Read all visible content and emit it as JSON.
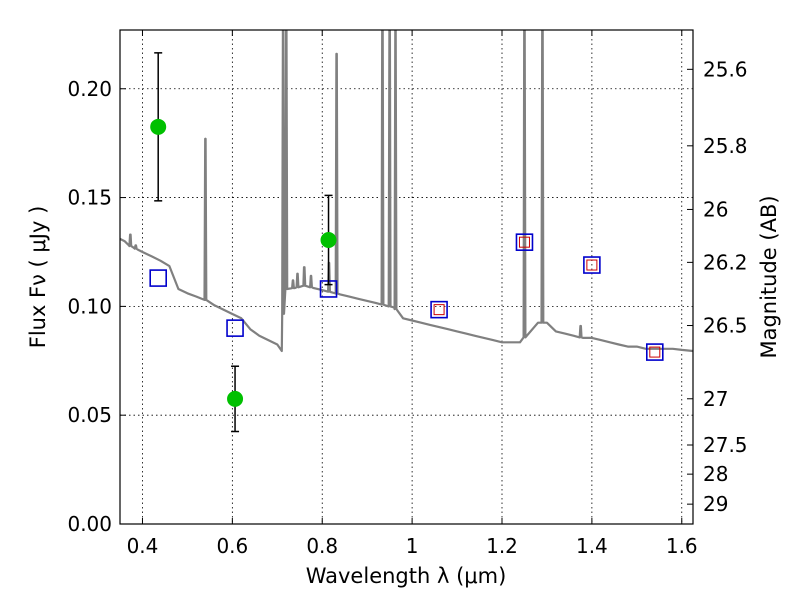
{
  "chart_data": {
    "type": "scatter",
    "xlabel": "Wavelength  λ (μm)",
    "ylabel": "Flux  Fν  ( μJy )",
    "y2label": "Magnitude (AB)",
    "xlim": [
      0.35,
      1.625
    ],
    "ylim": [
      0.0,
      0.227
    ],
    "grid": true,
    "x_ticks": [
      {
        "value": 0.4,
        "label": "0.4"
      },
      {
        "value": 0.6,
        "label": "0.6"
      },
      {
        "value": 0.8,
        "label": "0.8"
      },
      {
        "value": 1.0,
        "label": "1"
      },
      {
        "value": 1.2,
        "label": "1.2"
      },
      {
        "value": 1.4,
        "label": "1.4"
      },
      {
        "value": 1.6,
        "label": "1.6"
      }
    ],
    "y_ticks": [
      {
        "value": 0.0,
        "label": "0.00"
      },
      {
        "value": 0.05,
        "label": "0.05"
      },
      {
        "value": 0.1,
        "label": "0.10"
      },
      {
        "value": 0.15,
        "label": "0.15"
      },
      {
        "value": 0.2,
        "label": "0.20"
      }
    ],
    "y2_ticks": [
      {
        "mag": 25.6,
        "label": "25.6"
      },
      {
        "mag": 25.8,
        "label": "25.8"
      },
      {
        "mag": 26.0,
        "label": "26"
      },
      {
        "mag": 26.2,
        "label": "26.2"
      },
      {
        "mag": 26.5,
        "label": "26.5"
      },
      {
        "mag": 27.0,
        "label": "27"
      },
      {
        "mag": 27.5,
        "label": "27.5"
      },
      {
        "mag": 28.0,
        "label": "28"
      },
      {
        "mag": 29.0,
        "label": "29"
      }
    ],
    "colors": {
      "observed": "#00c000",
      "errorbar": "#000000",
      "model_box": "#0000cc",
      "model_inner": "#cc0000",
      "sed": "#808080",
      "grid": "#000000"
    },
    "observed": [
      {
        "x": 0.435,
        "y": 0.1825,
        "err": 0.034
      },
      {
        "x": 0.606,
        "y": 0.0575,
        "err": 0.015
      },
      {
        "x": 0.814,
        "y": 0.1305,
        "err": 0.0205
      }
    ],
    "model_photometry": [
      {
        "x": 0.435,
        "y": 0.113
      },
      {
        "x": 0.606,
        "y": 0.09
      },
      {
        "x": 0.814,
        "y": 0.108
      },
      {
        "x": 1.06,
        "y": 0.0985
      },
      {
        "x": 1.25,
        "y": 0.1295
      },
      {
        "x": 1.4,
        "y": 0.119
      },
      {
        "x": 1.54,
        "y": 0.079
      }
    ],
    "model_photometry_inner": [
      {
        "x": 1.06,
        "y": 0.0985
      },
      {
        "x": 1.25,
        "y": 0.1295
      },
      {
        "x": 1.4,
        "y": 0.119
      },
      {
        "x": 1.54,
        "y": 0.079
      }
    ],
    "sed_continuum": [
      [
        0.35,
        0.131
      ],
      [
        0.36,
        0.13
      ],
      [
        0.37,
        0.128
      ],
      [
        0.38,
        0.127
      ],
      [
        0.39,
        0.126
      ],
      [
        0.4,
        0.125
      ],
      [
        0.42,
        0.123
      ],
      [
        0.44,
        0.121
      ],
      [
        0.46,
        0.1185
      ],
      [
        0.48,
        0.108
      ],
      [
        0.5,
        0.106
      ],
      [
        0.52,
        0.1045
      ],
      [
        0.54,
        0.103
      ],
      [
        0.56,
        0.1005
      ],
      [
        0.58,
        0.0985
      ],
      [
        0.6,
        0.0965
      ],
      [
        0.62,
        0.0945
      ],
      [
        0.64,
        0.0895
      ],
      [
        0.66,
        0.0865
      ],
      [
        0.68,
        0.0845
      ],
      [
        0.7,
        0.0825
      ],
      [
        0.71,
        0.0795
      ],
      [
        0.715,
        0.108
      ],
      [
        0.72,
        0.108
      ],
      [
        0.74,
        0.1085
      ],
      [
        0.76,
        0.1095
      ],
      [
        0.78,
        0.1085
      ],
      [
        0.8,
        0.1075
      ],
      [
        0.82,
        0.1065
      ],
      [
        0.84,
        0.1055
      ],
      [
        0.86,
        0.1045
      ],
      [
        0.88,
        0.1035
      ],
      [
        0.9,
        0.1025
      ],
      [
        0.92,
        0.1015
      ],
      [
        0.94,
        0.1005
      ],
      [
        0.96,
        0.0995
      ],
      [
        0.98,
        0.0945
      ],
      [
        1.0,
        0.0935
      ],
      [
        1.02,
        0.0925
      ],
      [
        1.04,
        0.0915
      ],
      [
        1.06,
        0.0905
      ],
      [
        1.08,
        0.0895
      ],
      [
        1.1,
        0.0885
      ],
      [
        1.12,
        0.0875
      ],
      [
        1.14,
        0.0865
      ],
      [
        1.16,
        0.0855
      ],
      [
        1.18,
        0.0845
      ],
      [
        1.2,
        0.0835
      ],
      [
        1.24,
        0.0835
      ],
      [
        1.28,
        0.0925
      ],
      [
        1.3,
        0.0925
      ],
      [
        1.32,
        0.0885
      ],
      [
        1.34,
        0.0875
      ],
      [
        1.36,
        0.0865
      ],
      [
        1.38,
        0.0855
      ],
      [
        1.4,
        0.0855
      ],
      [
        1.42,
        0.0845
      ],
      [
        1.44,
        0.0835
      ],
      [
        1.46,
        0.0825
      ],
      [
        1.48,
        0.0815
      ],
      [
        1.5,
        0.0815
      ],
      [
        1.52,
        0.0805
      ],
      [
        1.54,
        0.0805
      ],
      [
        1.56,
        0.0805
      ],
      [
        1.58,
        0.0805
      ],
      [
        1.6,
        0.08
      ],
      [
        1.625,
        0.0795
      ]
    ],
    "sed_emission_lines": [
      {
        "x": 0.373,
        "peak": 0.133
      },
      {
        "x": 0.385,
        "peak": 0.128
      },
      {
        "x": 0.54,
        "peak": 0.177
      },
      {
        "x": 0.713,
        "peak": 0.227
      },
      {
        "x": 0.72,
        "peak": 0.227
      },
      {
        "x": 0.735,
        "peak": 0.112
      },
      {
        "x": 0.745,
        "peak": 0.115
      },
      {
        "x": 0.76,
        "peak": 0.118
      },
      {
        "x": 0.775,
        "peak": 0.114
      },
      {
        "x": 0.815,
        "peak": 0.12
      },
      {
        "x": 0.832,
        "peak": 0.216
      },
      {
        "x": 0.934,
        "peak": 0.227
      },
      {
        "x": 0.95,
        "peak": 0.227
      },
      {
        "x": 0.963,
        "peak": 0.227
      },
      {
        "x": 1.25,
        "peak": 0.227
      },
      {
        "x": 1.29,
        "peak": 0.227
      },
      {
        "x": 1.375,
        "peak": 0.091
      }
    ]
  }
}
